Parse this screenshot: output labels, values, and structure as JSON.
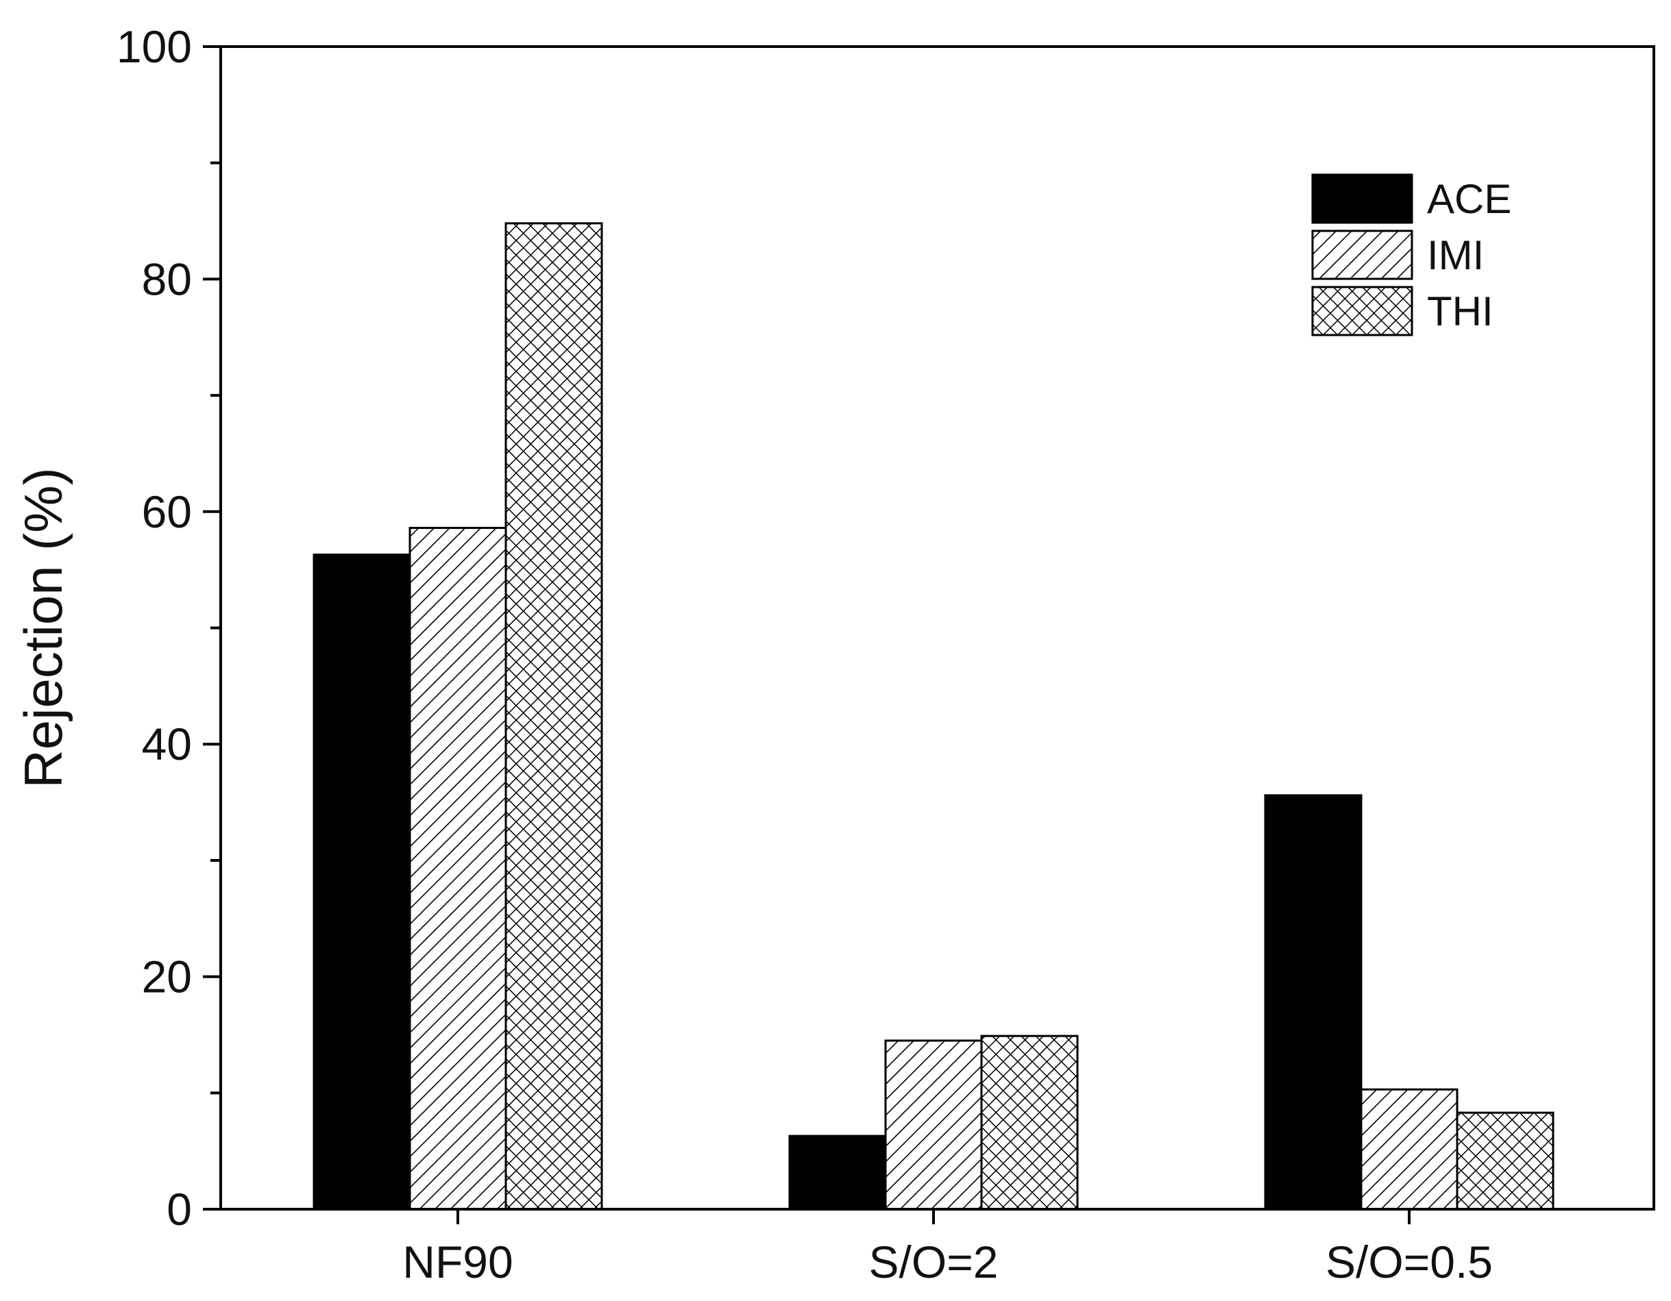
{
  "chart_data": {
    "type": "bar",
    "categories": [
      "NF90",
      "S/O=2",
      "S/O=0.5"
    ],
    "series": [
      {
        "name": "ACE",
        "values": [
          56.3,
          6.3,
          35.6
        ],
        "pattern": "solid"
      },
      {
        "name": "IMI",
        "values": [
          58.6,
          14.5,
          10.3
        ],
        "pattern": "diagonal-hatch"
      },
      {
        "name": "THI",
        "values": [
          84.8,
          14.9,
          8.3
        ],
        "pattern": "crosshatch"
      }
    ],
    "title": "",
    "xlabel": "",
    "ylabel": "Rejection (%)",
    "ylim": [
      0,
      100
    ],
    "yticks": [
      0,
      20,
      40,
      60,
      80,
      100
    ],
    "yminor_step": 10,
    "grid": false,
    "legend_position": "top-right",
    "colors": {
      "bar_fill_solid": "#000000",
      "bar_outline": "#000000",
      "background": "#ffffff"
    }
  }
}
